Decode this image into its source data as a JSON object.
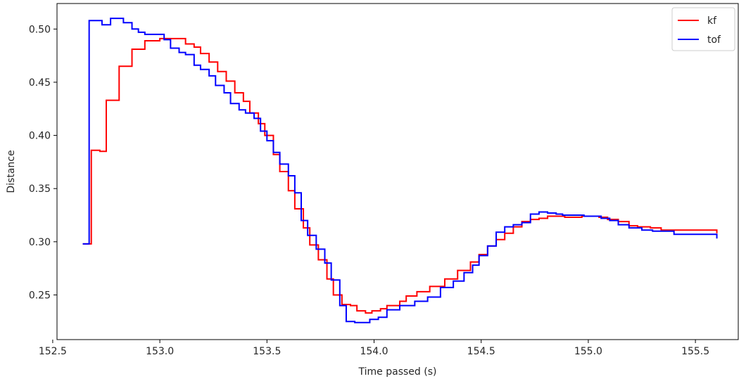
{
  "chart_data": {
    "type": "line",
    "title": "",
    "xlabel": "Time passed (s)",
    "ylabel": "Distance",
    "xlim": [
      152.52,
      155.7
    ],
    "ylim": [
      0.208,
      0.524
    ],
    "xticks": [
      152.5,
      153.0,
      153.5,
      154.0,
      154.5,
      155.0,
      155.5
    ],
    "xtick_labels": [
      "152.5",
      "153.0",
      "153.5",
      "154.0",
      "154.5",
      "155.0",
      "155.5"
    ],
    "yticks": [
      0.25,
      0.3,
      0.35,
      0.4,
      0.45,
      0.5
    ],
    "ytick_labels": [
      "0.25",
      "0.30",
      "0.35",
      "0.40",
      "0.45",
      "0.50"
    ],
    "grid": false,
    "legend_position": "top-right",
    "series": [
      {
        "name": "kf",
        "color": "#ff0000",
        "step": true,
        "x": [
          152.64,
          152.66,
          152.68,
          152.72,
          152.75,
          152.78,
          152.81,
          152.84,
          152.87,
          152.9,
          152.93,
          153.0,
          153.06,
          153.12,
          153.16,
          153.19,
          153.23,
          153.27,
          153.31,
          153.35,
          153.39,
          153.42,
          153.46,
          153.49,
          153.53,
          153.56,
          153.6,
          153.63,
          153.67,
          153.7,
          153.74,
          153.78,
          153.81,
          153.85,
          153.89,
          153.92,
          153.96,
          153.99,
          154.03,
          154.06,
          154.12,
          154.15,
          154.2,
          154.26,
          154.33,
          154.39,
          154.45,
          154.49,
          154.53,
          154.57,
          154.61,
          154.65,
          154.69,
          154.73,
          154.77,
          154.81,
          154.85,
          154.89,
          154.93,
          154.97,
          155.01,
          155.05,
          155.09,
          155.14,
          155.19,
          155.23,
          155.29,
          155.34,
          155.38,
          155.41,
          155.44,
          155.48,
          155.52,
          155.6
        ],
        "y": [
          0.298,
          0.298,
          0.386,
          0.385,
          0.433,
          0.433,
          0.465,
          0.465,
          0.481,
          0.481,
          0.489,
          0.491,
          0.491,
          0.486,
          0.483,
          0.477,
          0.469,
          0.46,
          0.451,
          0.44,
          0.432,
          0.421,
          0.411,
          0.4,
          0.382,
          0.366,
          0.348,
          0.331,
          0.313,
          0.297,
          0.283,
          0.265,
          0.25,
          0.241,
          0.24,
          0.235,
          0.233,
          0.235,
          0.237,
          0.24,
          0.244,
          0.249,
          0.253,
          0.258,
          0.265,
          0.273,
          0.281,
          0.288,
          0.296,
          0.302,
          0.308,
          0.314,
          0.319,
          0.321,
          0.322,
          0.324,
          0.324,
          0.323,
          0.323,
          0.324,
          0.324,
          0.323,
          0.321,
          0.319,
          0.315,
          0.314,
          0.313,
          0.311,
          0.311,
          0.311,
          0.311,
          0.311,
          0.311,
          0.308
        ]
      },
      {
        "name": "tof",
        "color": "#0000ff",
        "step": true,
        "x": [
          152.64,
          152.66,
          152.67,
          152.73,
          152.77,
          152.83,
          152.87,
          152.9,
          152.93,
          153.02,
          153.05,
          153.09,
          153.12,
          153.16,
          153.19,
          153.23,
          153.26,
          153.3,
          153.33,
          153.37,
          153.4,
          153.44,
          153.47,
          153.5,
          153.53,
          153.56,
          153.6,
          153.63,
          153.66,
          153.69,
          153.73,
          153.77,
          153.8,
          153.84,
          153.87,
          153.91,
          153.94,
          153.98,
          154.02,
          154.06,
          154.12,
          154.19,
          154.25,
          154.31,
          154.37,
          154.42,
          154.46,
          154.49,
          154.53,
          154.57,
          154.61,
          154.65,
          154.69,
          154.73,
          154.77,
          154.81,
          154.85,
          154.88,
          154.94,
          154.98,
          155.02,
          155.06,
          155.1,
          155.14,
          155.19,
          155.25,
          155.3,
          155.33,
          155.36,
          155.4,
          155.44,
          155.48,
          155.52,
          155.6
        ],
        "y": [
          0.298,
          0.298,
          0.508,
          0.504,
          0.51,
          0.506,
          0.5,
          0.497,
          0.495,
          0.49,
          0.482,
          0.478,
          0.476,
          0.466,
          0.462,
          0.456,
          0.447,
          0.44,
          0.43,
          0.424,
          0.421,
          0.416,
          0.404,
          0.395,
          0.384,
          0.373,
          0.362,
          0.346,
          0.32,
          0.306,
          0.293,
          0.28,
          0.264,
          0.24,
          0.225,
          0.224,
          0.224,
          0.227,
          0.229,
          0.236,
          0.24,
          0.244,
          0.248,
          0.257,
          0.263,
          0.271,
          0.278,
          0.287,
          0.296,
          0.309,
          0.314,
          0.316,
          0.318,
          0.326,
          0.328,
          0.327,
          0.326,
          0.325,
          0.325,
          0.324,
          0.324,
          0.322,
          0.32,
          0.316,
          0.313,
          0.311,
          0.31,
          0.31,
          0.31,
          0.307,
          0.307,
          0.307,
          0.307,
          0.303
        ]
      }
    ]
  }
}
